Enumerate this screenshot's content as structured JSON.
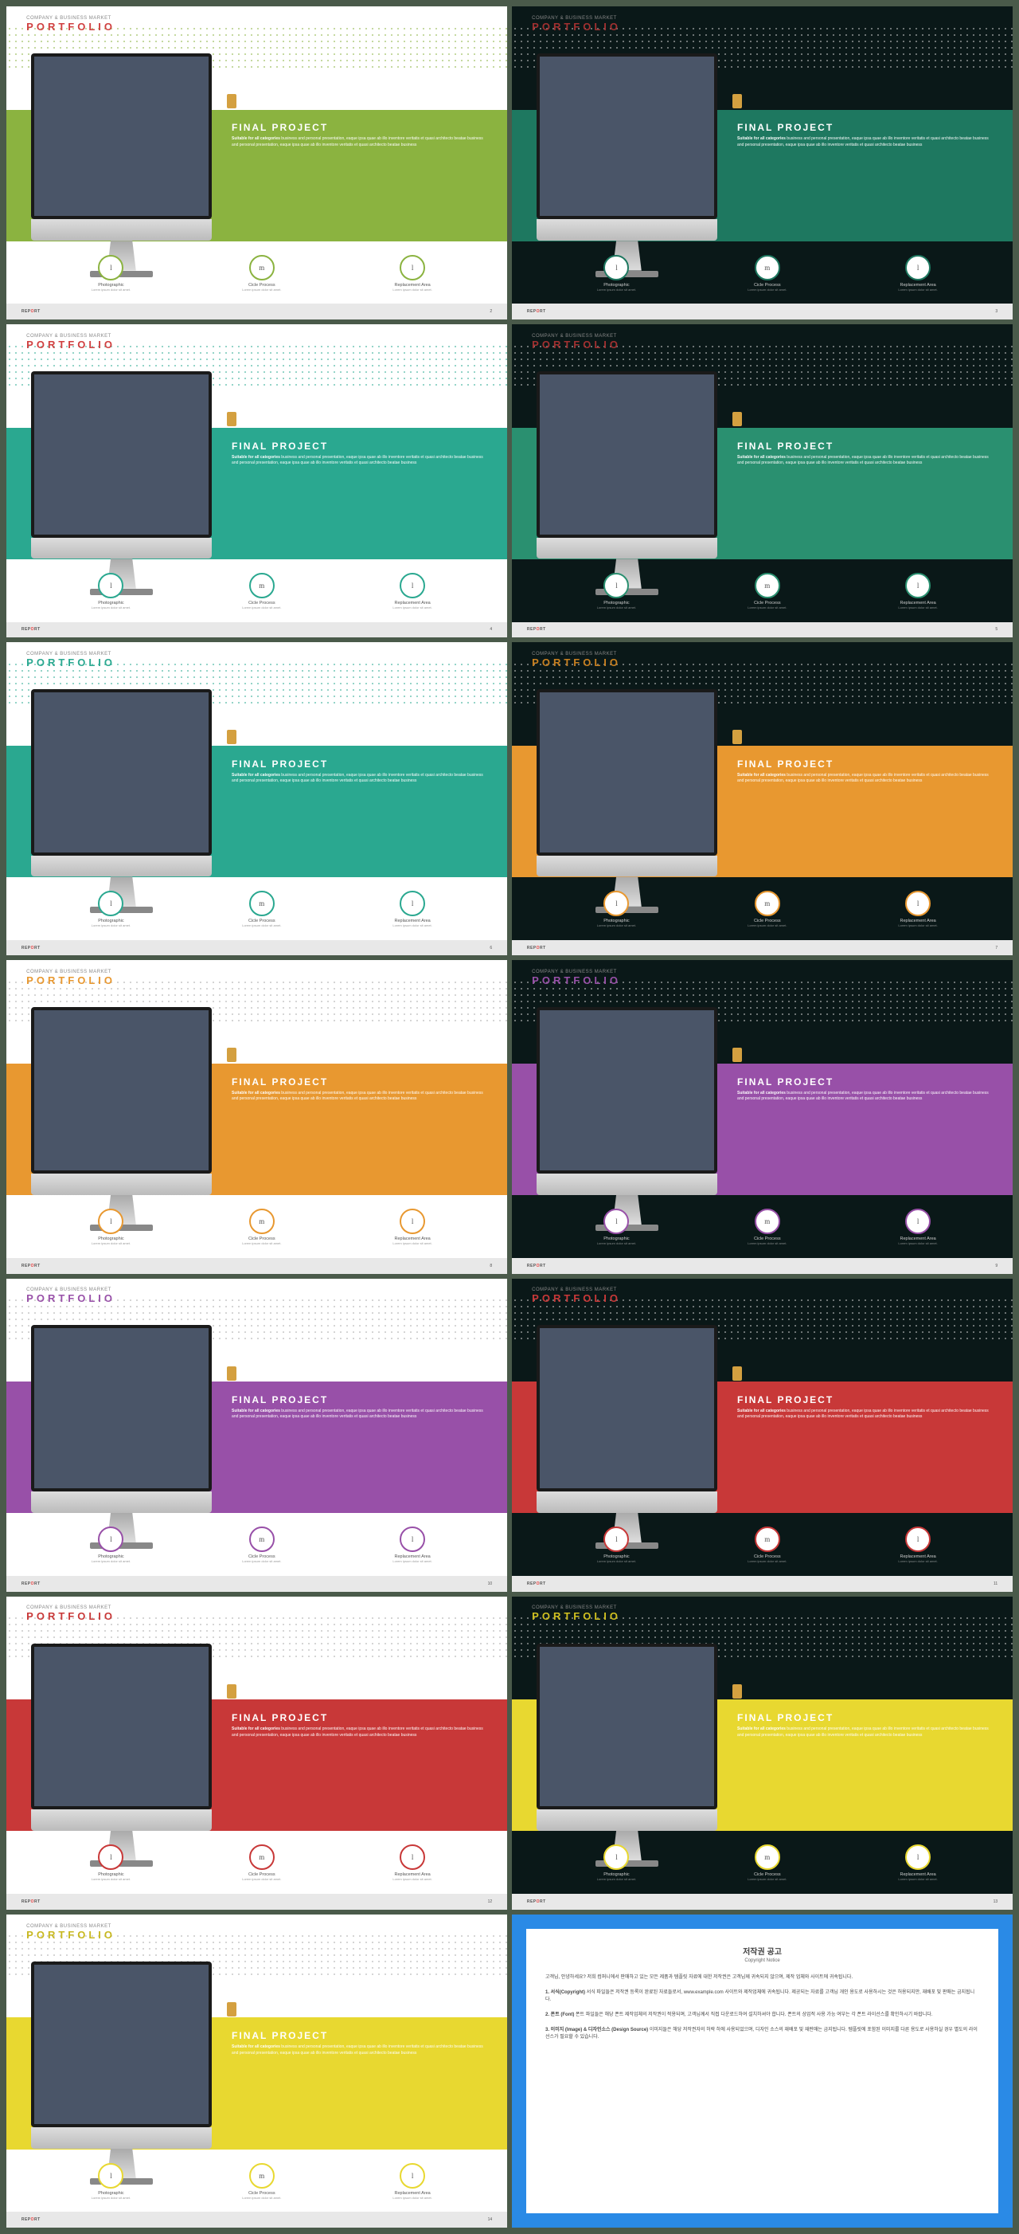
{
  "slides": [
    {
      "bg": "light",
      "accent": "#8bb340",
      "title_color": "#d04040",
      "dot_color": "#8bb340",
      "num": 2
    },
    {
      "bg": "dark",
      "accent": "#1e7860",
      "title_color": "#a03030",
      "dot_color": "#d0d0d0",
      "num": 3
    },
    {
      "bg": "light",
      "accent": "#2aa890",
      "title_color": "#d04040",
      "dot_color": "#2aa890",
      "num": 4
    },
    {
      "bg": "dark",
      "accent": "#2a9070",
      "title_color": "#a03030",
      "dot_color": "#d0d0d0",
      "num": 5
    },
    {
      "bg": "light",
      "accent": "#2aa890",
      "title_color": "#2aa890",
      "dot_color": "#2aa890",
      "num": 6
    },
    {
      "bg": "dark",
      "accent": "#e89830",
      "title_color": "#c88020",
      "dot_color": "#d0d0d0",
      "num": 7
    },
    {
      "bg": "light",
      "accent": "#e89830",
      "title_color": "#e89830",
      "dot_color": "#aaa",
      "num": 8
    },
    {
      "bg": "dark",
      "accent": "#9850a8",
      "title_color": "#9850a8",
      "dot_color": "#d0d0d0",
      "num": 9
    },
    {
      "bg": "light",
      "accent": "#9850a8",
      "title_color": "#9850a8",
      "dot_color": "#aaa",
      "num": 10
    },
    {
      "bg": "dark",
      "accent": "#c83838",
      "title_color": "#c83838",
      "dot_color": "#d0d0d0",
      "num": 11
    },
    {
      "bg": "light",
      "accent": "#c83838",
      "title_color": "#c83838",
      "dot_color": "#aaa",
      "num": 12
    },
    {
      "bg": "dark",
      "accent": "#e8d830",
      "title_color": "#d0c020",
      "dot_color": "#d0d0d0",
      "num": 13
    },
    {
      "bg": "light",
      "accent": "#e8d830",
      "title_color": "#c8b820",
      "dot_color": "#aaa",
      "num": 14
    }
  ],
  "text": {
    "subheader": "COMPANY & BUSINESS MARKET",
    "portfolio": "PORTFOLIO",
    "project_title": "FINAL PROJECT",
    "desc_bold": "Suitable for all categories",
    "desc_rest": " business and personal presentation, eaque ipsa quae ab illo inventore veritatis et quasi architecto beatae business and personal presentation, eaque ipsa quae ab illo inventore veritatis et quasi architecto beatae business",
    "circles": [
      {
        "letter": "l",
        "label": "Photographic",
        "sub": "Lorem ipsum dolor sit amet."
      },
      {
        "letter": "m",
        "label": "Cicle Process",
        "sub": "Lorem ipsum dolor sit amet."
      },
      {
        "letter": "l",
        "label": "Replacement Area",
        "sub": "Lorem ipsum dolor sit amet."
      }
    ],
    "footer_pre": "REP",
    "footer_o": "O",
    "footer_post": "RT"
  },
  "notice": {
    "title": "저작권 공고",
    "subtitle": "Copyright Notice",
    "p1": "고객님, 안녕하세요? 저희 컴퍼니에서 판매하고 있는 모든 제품과 템플릿 자료에 대한 저작권은 고객님께 귀속되지 않으며, 제작 업체와 사이트에 귀속됩니다.",
    "b1": "1. 서식(Copyright)",
    "p2": "서식 파일들은 저작권 등록이 완료된 자료들로서, www.example.com 사이트와 제작업체에 귀속됩니다. 제공되는 자료를 고객님 개인 용도로 사용하시는 것은 허용되지만, 재배포 및 판매는 금지됩니다.",
    "b2": "2. 폰트 (Font)",
    "p3": "폰트 파일들은 해당 폰트 제작업체의 저작권이 적용되며, 고객님께서 직접 다운로드하여 설치하셔야 합니다. 폰트의 상업적 사용 가능 여부는 각 폰트 라이선스를 확인하시기 바랍니다.",
    "b3": "3. 이미지 (Image) & 디자인소스 (Design Source)",
    "p4": "이미지들은 해당 저작권자의 허락 하에 사용되었으며, 디자인 소스의 재배포 및 재판매는 금지됩니다. 템플릿에 포함된 이미지를 다른 용도로 사용하실 경우 별도의 라이선스가 필요할 수 있습니다."
  }
}
